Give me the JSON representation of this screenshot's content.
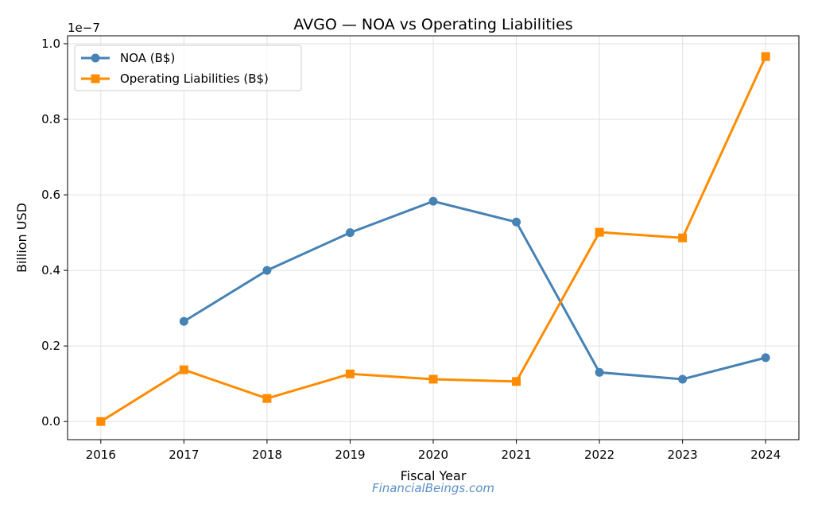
{
  "chart_data": {
    "type": "line",
    "title": "AVGO — NOA vs Operating Liabilities",
    "xlabel": "Fiscal Year",
    "ylabel": "Billion USD",
    "y_offset_label": "1e−7",
    "x": [
      2016,
      2017,
      2018,
      2019,
      2020,
      2021,
      2022,
      2023,
      2024
    ],
    "x_ticks": [
      "2016",
      "2017",
      "2018",
      "2019",
      "2020",
      "2021",
      "2022",
      "2023",
      "2024"
    ],
    "y_ticks": [
      "0.0",
      "0.2",
      "0.4",
      "0.6",
      "0.8",
      "1.0"
    ],
    "xlim": [
      2015.6,
      2024.4
    ],
    "ylim": [
      -0.048,
      1.021
    ],
    "y_scale_note": "values ×1e-7",
    "grid": true,
    "legend": "top-left",
    "series": [
      {
        "name": "NOA (B$)",
        "color": "#4682b4",
        "marker": "circle",
        "values": [
          null,
          0.265,
          0.4,
          0.5,
          0.583,
          0.528,
          0.13,
          0.112,
          0.169
        ]
      },
      {
        "name": "Operating Liabilities (B$)",
        "color": "#ff8c00",
        "marker": "square",
        "values": [
          0.0,
          0.137,
          0.061,
          0.126,
          0.112,
          0.106,
          0.501,
          0.486,
          0.966
        ]
      }
    ]
  },
  "watermark": "FinancialBeings.com"
}
